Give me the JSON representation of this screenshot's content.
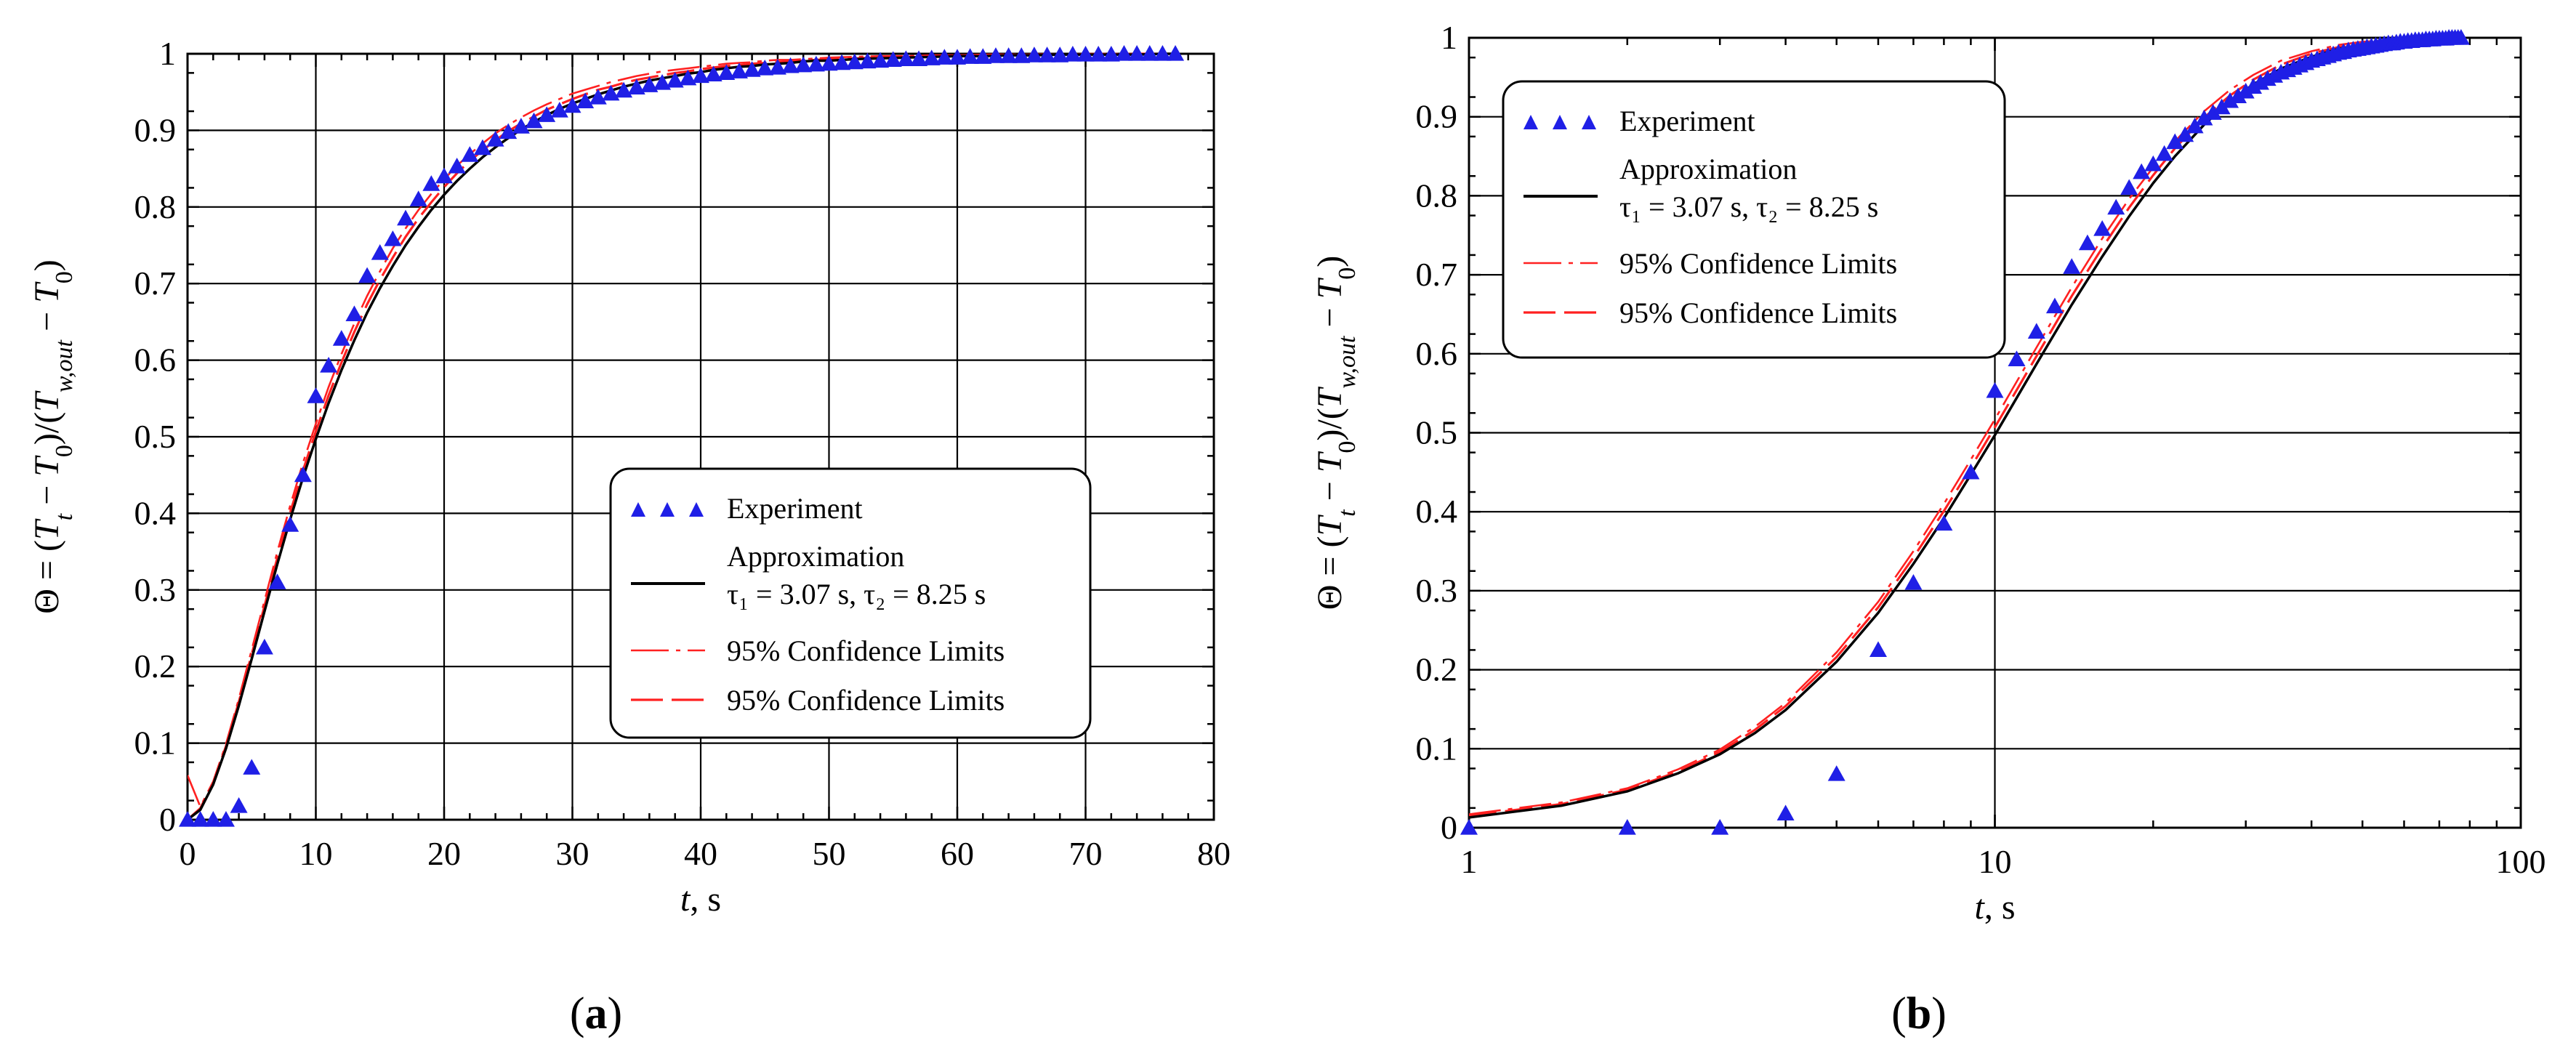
{
  "colors": {
    "experiment": "#1f1fe6",
    "approximation": "#000000",
    "confidence_limit": "#ff2020",
    "grid": "#000000",
    "background": "#ffffff"
  },
  "chart_data": [
    {
      "panel_label": "(a)",
      "type": "scatter",
      "xscale": "linear",
      "xlim": [
        0,
        80
      ],
      "ylim": [
        0,
        1
      ],
      "xticks": [
        "0",
        "10",
        "20",
        "30",
        "40",
        "50",
        "60",
        "70",
        "80"
      ],
      "yticks": [
        "0",
        "0.1",
        "0.2",
        "0.3",
        "0.4",
        "0.5",
        "0.6",
        "0.7",
        "0.8",
        "0.9",
        "1"
      ],
      "xlabel": {
        "italic": "t",
        "rest": ", s"
      },
      "ylabel": "Θ = (T_t − T_0)/(T_w,out − T_0)",
      "legend_position": "center-right",
      "legend": {
        "experiment": "Experiment",
        "approximation": "Approximation",
        "tau": "τ₁ = 3.07 s, τ₂ = 8.25 s",
        "limit_a": "95% Confidence Limits",
        "limit_b": "95% Confidence Limits"
      },
      "model": {
        "tau1": 3.07,
        "tau2": 8.25
      },
      "series": [
        {
          "name": "Experiment",
          "marker": "triangle",
          "x": [
            0,
            1,
            2,
            3,
            4,
            5,
            6,
            7,
            8,
            9,
            10,
            11,
            12,
            13,
            14,
            15,
            16,
            17,
            18,
            19,
            20,
            21,
            22,
            23,
            24,
            25,
            26,
            27,
            28,
            29,
            30,
            31,
            32,
            33,
            34,
            35,
            36,
            37,
            38,
            39,
            40,
            41,
            42,
            43,
            44,
            45,
            46,
            47,
            48,
            49,
            50,
            51,
            52,
            53,
            54,
            55,
            56,
            57,
            58,
            59,
            60,
            61,
            62,
            63,
            64,
            65,
            66,
            67,
            68,
            69,
            70,
            71,
            72,
            73,
            74,
            75,
            76,
            77
          ],
          "y": [
            0,
            0,
            0,
            0,
            0.018,
            0.068,
            0.225,
            0.31,
            0.385,
            0.45,
            0.553,
            0.593,
            0.628,
            0.66,
            0.71,
            0.74,
            0.758,
            0.785,
            0.81,
            0.83,
            0.84,
            0.853,
            0.868,
            0.877,
            0.888,
            0.898,
            0.905,
            0.912,
            0.92,
            0.926,
            0.932,
            0.938,
            0.943,
            0.948,
            0.952,
            0.956,
            0.959,
            0.962,
            0.965,
            0.968,
            0.971,
            0.973,
            0.975,
            0.977,
            0.979,
            0.981,
            0.982,
            0.984,
            0.985,
            0.986,
            0.987,
            0.988,
            0.989,
            0.99,
            0.991,
            0.992,
            0.993,
            0.993,
            0.994,
            0.995,
            0.995,
            0.996,
            0.996,
            0.997,
            0.997,
            0.997,
            0.998,
            0.998,
            0.998,
            0.999,
            0.999,
            0.999,
            0.999,
            1.0,
            1.0,
            1.0,
            1.0,
            1.0
          ]
        },
        {
          "name": "Approximation",
          "style": "solid-black",
          "x": [
            0,
            1,
            2,
            3,
            4,
            5,
            6,
            7,
            8,
            9,
            10,
            11,
            12,
            13,
            14,
            15,
            16,
            17,
            18,
            19,
            20,
            21,
            22,
            23,
            24,
            25,
            26,
            27,
            28,
            29,
            30,
            31,
            32,
            33,
            34,
            35,
            36,
            37,
            38,
            39,
            40,
            41,
            42,
            43,
            44,
            45,
            46,
            47,
            48,
            49,
            50,
            52,
            54,
            56,
            58,
            60,
            62,
            64,
            66,
            68,
            70,
            72,
            74,
            76,
            77
          ],
          "y": [
            0,
            0.013,
            0.046,
            0.093,
            0.149,
            0.21,
            0.272,
            0.334,
            0.392,
            0.447,
            0.497,
            0.544,
            0.587,
            0.626,
            0.662,
            0.694,
            0.723,
            0.75,
            0.774,
            0.796,
            0.816,
            0.834,
            0.85,
            0.865,
            0.878,
            0.89,
            0.901,
            0.911,
            0.92,
            0.928,
            0.935,
            0.941,
            0.947,
            0.952,
            0.957,
            0.961,
            0.965,
            0.968,
            0.971,
            0.974,
            0.976,
            0.979,
            0.981,
            0.983,
            0.984,
            0.986,
            0.987,
            0.988,
            0.99,
            0.991,
            0.991,
            0.993,
            0.994,
            0.995,
            0.996,
            0.997,
            0.997,
            0.998,
            0.998,
            0.999,
            0.999,
            0.999,
            0.999,
            1.0,
            1.0
          ]
        },
        {
          "name": "95% Confidence Limits (upper)",
          "style": "dash-dot-red",
          "x": [
            0,
            1,
            2,
            3,
            4,
            5,
            6,
            7,
            8,
            9,
            10,
            11,
            12,
            13,
            14,
            15,
            16,
            17,
            18,
            19,
            20,
            21,
            22,
            23,
            24,
            25,
            26,
            27,
            28,
            29,
            30,
            31,
            32,
            33,
            34,
            35,
            36,
            37,
            38,
            39,
            40,
            41,
            42,
            43,
            44,
            45,
            46,
            47,
            48,
            49,
            50,
            52,
            54,
            56,
            58,
            60,
            62,
            64,
            66,
            68,
            70,
            72,
            74,
            76,
            77
          ],
          "y": [
            0.058,
            0.017,
            0.05,
            0.099,
            0.158,
            0.222,
            0.286,
            0.35,
            0.41,
            0.466,
            0.517,
            0.565,
            0.608,
            0.648,
            0.684,
            0.716,
            0.746,
            0.772,
            0.796,
            0.817,
            0.836,
            0.854,
            0.869,
            0.883,
            0.896,
            0.907,
            0.917,
            0.926,
            0.934,
            0.941,
            0.948,
            0.953,
            0.958,
            0.963,
            0.967,
            0.971,
            0.974,
            0.977,
            0.979,
            0.981,
            0.983,
            0.985,
            0.987,
            0.988,
            0.989,
            0.991,
            0.992,
            0.992,
            0.993,
            0.994,
            0.995,
            0.996,
            0.997,
            0.997,
            0.998,
            0.998,
            0.999,
            0.999,
            0.999,
            0.999,
            1.0,
            1.0,
            1.0,
            1.0,
            1.0
          ]
        },
        {
          "name": "95% Confidence Limits (lower)",
          "style": "dash-red",
          "x": [
            0,
            1,
            2,
            3,
            4,
            5,
            6,
            7,
            8,
            9,
            10,
            11,
            12,
            13,
            14,
            15,
            16,
            17,
            18,
            19,
            20,
            21,
            22,
            23,
            24,
            25,
            26,
            27,
            28,
            29,
            30,
            31,
            32,
            33,
            34,
            35,
            36,
            37,
            38,
            39,
            40,
            41,
            42,
            43,
            44,
            45,
            46,
            47,
            48,
            49,
            50,
            52,
            54,
            56,
            58,
            60,
            62,
            64,
            66,
            68,
            70,
            72,
            74,
            76,
            77
          ],
          "y": [
            0,
            0.015,
            0.048,
            0.096,
            0.154,
            0.216,
            0.279,
            0.342,
            0.401,
            0.456,
            0.507,
            0.554,
            0.597,
            0.637,
            0.673,
            0.705,
            0.734,
            0.761,
            0.785,
            0.806,
            0.826,
            0.844,
            0.86,
            0.874,
            0.887,
            0.899,
            0.909,
            0.918,
            0.927,
            0.934,
            0.941,
            0.947,
            0.953,
            0.957,
            0.962,
            0.966,
            0.969,
            0.972,
            0.975,
            0.977,
            0.98,
            0.982,
            0.984,
            0.985,
            0.987,
            0.988,
            0.989,
            0.99,
            0.991,
            0.992,
            0.993,
            0.994,
            0.995,
            0.996,
            0.997,
            0.998,
            0.998,
            0.998,
            0.999,
            0.999,
            0.999,
            0.999,
            1.0,
            1.0,
            1.0
          ]
        }
      ]
    },
    {
      "panel_label": "(b)",
      "type": "scatter",
      "xscale": "log",
      "xlim": [
        1,
        100
      ],
      "ylim": [
        0,
        1
      ],
      "xticks": [
        "1",
        "10",
        "100"
      ],
      "yticks": [
        "0",
        "0.1",
        "0.2",
        "0.3",
        "0.4",
        "0.5",
        "0.6",
        "0.7",
        "0.8",
        "0.9",
        "1"
      ],
      "xlabel": {
        "italic": "t",
        "rest": ", s"
      },
      "ylabel": "Θ = (T_t − T_0)/(T_w,out − T_0)",
      "legend_position": "top-left",
      "legend": {
        "experiment": "Experiment",
        "approximation": "Approximation",
        "tau": "τ₁ = 3.07 s, τ₂ = 8.25 s",
        "limit_a": "95% Confidence Limits",
        "limit_b": "95% Confidence Limits"
      },
      "model": {
        "tau1": 3.07,
        "tau2": 8.25
      },
      "series": [
        {
          "name": "Experiment",
          "marker": "triangle",
          "x": [
            1,
            2,
            3,
            4,
            5,
            6,
            7,
            8,
            9,
            10,
            11,
            12,
            13,
            14,
            15,
            16,
            17,
            18,
            19,
            20,
            21,
            22,
            23,
            24,
            25,
            26,
            27,
            28,
            29,
            30,
            31,
            32,
            33,
            34,
            35,
            36,
            37,
            38,
            39,
            40,
            41,
            42,
            43,
            44,
            45,
            46,
            47,
            48,
            49,
            50,
            51,
            52,
            53,
            54,
            55,
            56,
            57,
            58,
            59,
            60,
            61,
            62,
            63,
            64,
            65,
            66,
            67,
            68,
            69,
            70,
            71,
            72,
            73,
            74,
            75,
            76,
            77
          ],
          "y": [
            0,
            0,
            0,
            0.018,
            0.068,
            0.225,
            0.31,
            0.385,
            0.45,
            0.553,
            0.593,
            0.628,
            0.66,
            0.71,
            0.74,
            0.758,
            0.785,
            0.81,
            0.83,
            0.84,
            0.853,
            0.868,
            0.877,
            0.888,
            0.898,
            0.905,
            0.912,
            0.92,
            0.926,
            0.932,
            0.938,
            0.943,
            0.948,
            0.952,
            0.956,
            0.959,
            0.962,
            0.965,
            0.968,
            0.971,
            0.973,
            0.975,
            0.977,
            0.979,
            0.981,
            0.982,
            0.984,
            0.985,
            0.986,
            0.987,
            0.988,
            0.989,
            0.99,
            0.991,
            0.992,
            0.993,
            0.993,
            0.994,
            0.995,
            0.995,
            0.996,
            0.996,
            0.997,
            0.997,
            0.997,
            0.998,
            0.998,
            0.998,
            0.999,
            0.999,
            0.999,
            0.999,
            1.0,
            1.0,
            1.0,
            1.0,
            1.0
          ]
        },
        {
          "name": "Approximation",
          "style": "solid-black",
          "x": [
            1,
            1.5,
            2,
            2.5,
            3,
            3.5,
            4,
            5,
            6,
            7,
            8,
            9,
            10,
            12,
            14,
            16,
            18,
            20,
            22,
            25,
            28,
            31,
            35,
            40,
            45,
            50,
            60,
            70,
            77
          ],
          "y": [
            0.013,
            0.028,
            0.046,
            0.069,
            0.093,
            0.12,
            0.149,
            0.21,
            0.272,
            0.334,
            0.392,
            0.447,
            0.497,
            0.587,
            0.662,
            0.723,
            0.774,
            0.816,
            0.85,
            0.89,
            0.92,
            0.941,
            0.961,
            0.976,
            0.986,
            0.991,
            0.997,
            0.999,
            1.0
          ]
        },
        {
          "name": "95% Confidence Limits (upper)",
          "style": "dash-dot-red",
          "x": [
            1,
            1.5,
            2,
            2.5,
            3,
            3.5,
            4,
            5,
            6,
            7,
            8,
            9,
            10,
            12,
            14,
            16,
            18,
            20,
            22,
            25,
            28,
            31,
            35,
            40,
            45,
            50,
            60,
            70,
            77
          ],
          "y": [
            0.017,
            0.032,
            0.05,
            0.074,
            0.099,
            0.128,
            0.158,
            0.222,
            0.286,
            0.35,
            0.41,
            0.466,
            0.517,
            0.608,
            0.684,
            0.746,
            0.796,
            0.836,
            0.869,
            0.907,
            0.934,
            0.953,
            0.971,
            0.983,
            0.991,
            0.995,
            0.998,
            1.0,
            1.0
          ]
        },
        {
          "name": "95% Confidence Limits (lower)",
          "style": "dash-red",
          "x": [
            1,
            1.5,
            2,
            2.5,
            3,
            3.5,
            4,
            5,
            6,
            7,
            8,
            9,
            10,
            12,
            14,
            16,
            18,
            20,
            22,
            25,
            28,
            31,
            35,
            40,
            45,
            50,
            60,
            70,
            77
          ],
          "y": [
            0.015,
            0.03,
            0.048,
            0.071,
            0.096,
            0.124,
            0.154,
            0.216,
            0.279,
            0.342,
            0.401,
            0.456,
            0.507,
            0.597,
            0.673,
            0.734,
            0.785,
            0.826,
            0.86,
            0.899,
            0.927,
            0.947,
            0.966,
            0.98,
            0.988,
            0.993,
            0.998,
            0.999,
            1.0
          ]
        }
      ]
    }
  ]
}
